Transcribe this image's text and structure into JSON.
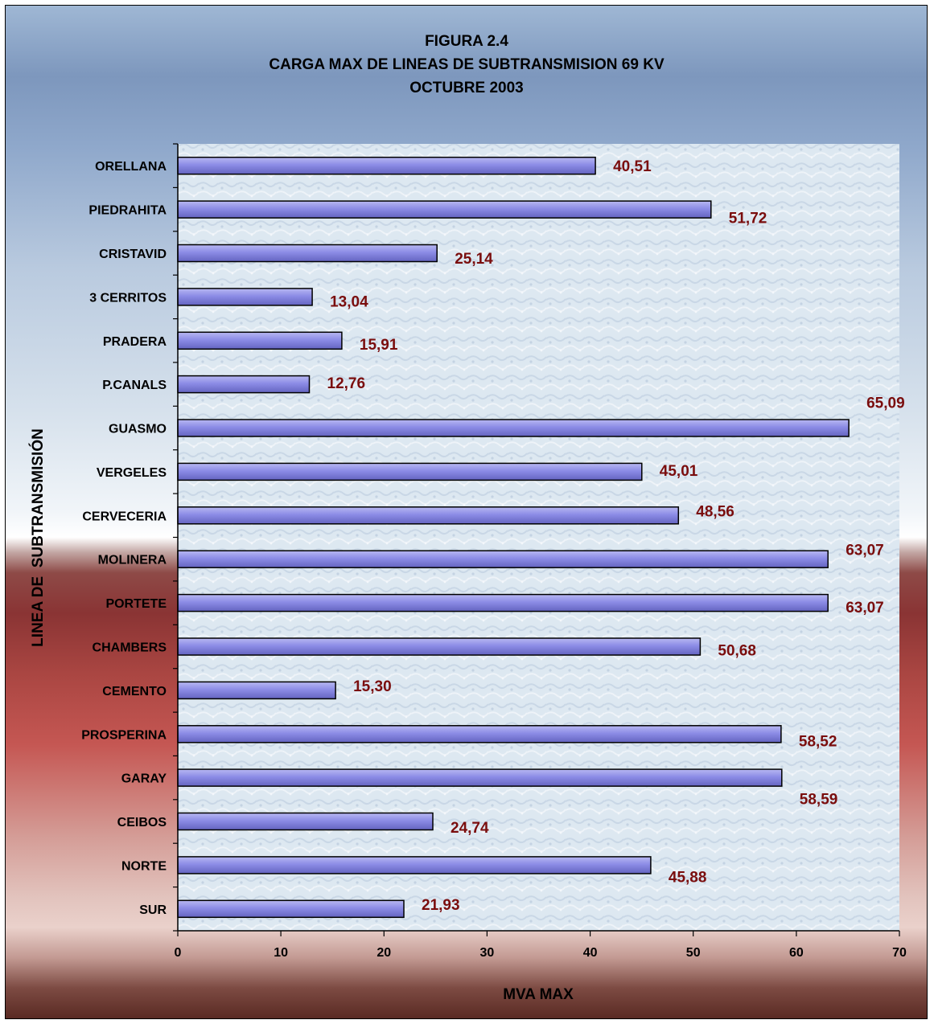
{
  "chart_data": {
    "type": "bar",
    "orientation": "horizontal",
    "title": [
      "FIGURA 2.4",
      "CARGA MAX DE LINEAS DE SUBTRANSMISION 69 KV",
      "OCTUBRE 2003"
    ],
    "xlabel": "MVA MAX",
    "ylabel": "LINEA DE  SUBTRANSMISIÓN",
    "xlim": [
      0,
      70
    ],
    "xticks": [
      0,
      10,
      20,
      30,
      40,
      50,
      60,
      70
    ],
    "grid": false,
    "legend": "none",
    "categories": [
      "ORELLANA",
      "PIEDRAHITA",
      "CRISTAVID",
      "3 CERRITOS",
      "PRADERA",
      "P.CANALS",
      "GUASMO",
      "VERGELES",
      "CERVECERIA",
      "MOLINERA",
      "PORTETE",
      "CHAMBERS",
      "CEMENTO",
      "PROSPERINA",
      "GARAY",
      "CEIBOS",
      "NORTE",
      "SUR"
    ],
    "values": [
      40.51,
      51.72,
      25.14,
      13.04,
      15.91,
      12.76,
      65.09,
      45.01,
      48.56,
      63.07,
      63.07,
      50.68,
      15.3,
      58.52,
      58.59,
      24.74,
      45.88,
      21.93
    ],
    "value_labels": [
      "40,51",
      "51,72",
      "25,14",
      "13,04",
      "15,91",
      "12,76",
      "65,09",
      "45,01",
      "48,56",
      "63,07",
      "63,07",
      "50,68",
      "15,30",
      "58,52",
      "58,59",
      "24,74",
      "45,88",
      "21,93"
    ],
    "colors": {
      "bar": "#8c8ce6",
      "bar_light": "#b8b8f2",
      "bar_dark": "#6464c0",
      "value_label": "#7a0d0d",
      "plot_bg": "#dde8f1"
    }
  }
}
